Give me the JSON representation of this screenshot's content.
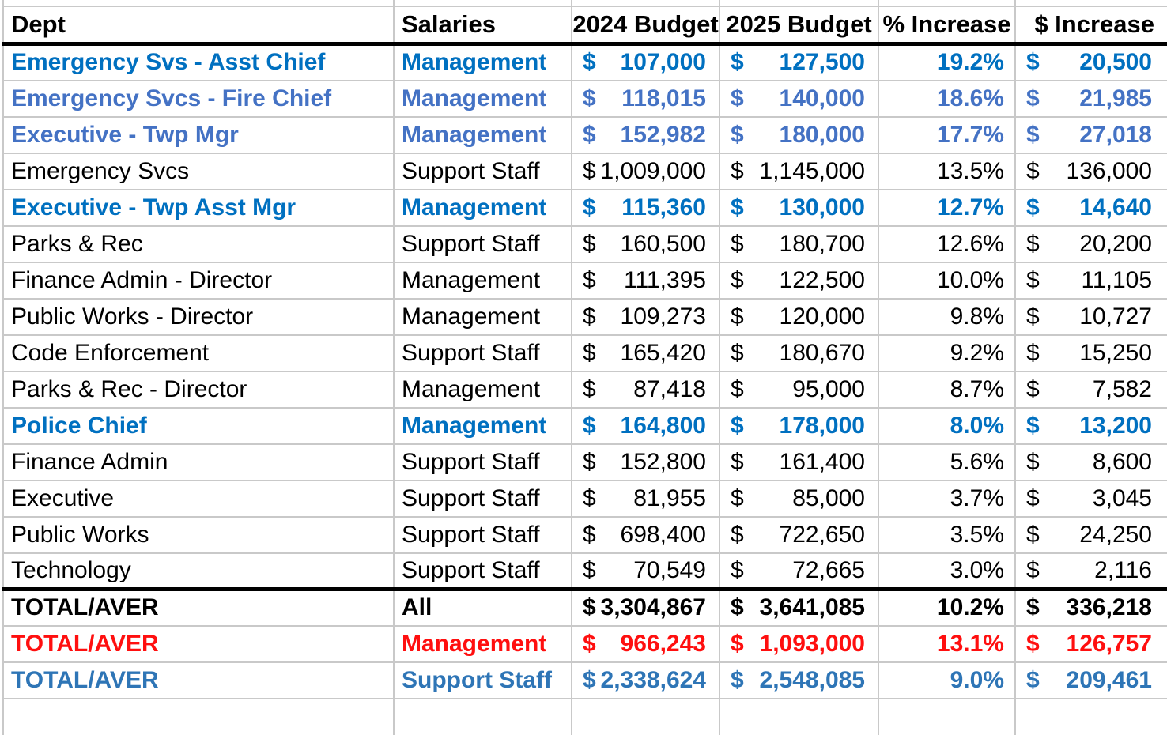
{
  "sheet": {
    "currency_symbol": "$",
    "columns": {
      "dept": "Dept",
      "salaries": "Salaries",
      "budget_2024": "2024 Budget",
      "budget_2025": "2025 Budget",
      "pct_increase": "% Increase",
      "dollar_increase": "$ Increase"
    },
    "rows": [
      {
        "dept": "Emergency Svs - Asst Chief",
        "salaries": "Management",
        "budget_2024": "107,000",
        "budget_2025": "127,500",
        "pct_increase": "19.2%",
        "dollar_increase": "20,500",
        "style": "bright-blue"
      },
      {
        "dept": "Emergency Svcs - Fire Chief",
        "salaries": "Management",
        "budget_2024": "118,015",
        "budget_2025": "140,000",
        "pct_increase": "18.6%",
        "dollar_increase": "21,985",
        "style": "soft-blue"
      },
      {
        "dept": "Executive - Twp Mgr",
        "salaries": "Management",
        "budget_2024": "152,982",
        "budget_2025": "180,000",
        "pct_increase": "17.7%",
        "dollar_increase": "27,018",
        "style": "soft-blue"
      },
      {
        "dept": "Emergency Svcs",
        "salaries": "Support Staff",
        "budget_2024": "1,009,000",
        "budget_2025": "1,145,000",
        "pct_increase": "13.5%",
        "dollar_increase": "136,000",
        "style": "plain"
      },
      {
        "dept": "Executive - Twp Asst Mgr",
        "salaries": "Management",
        "budget_2024": "115,360",
        "budget_2025": "130,000",
        "pct_increase": "12.7%",
        "dollar_increase": "14,640",
        "style": "bright-blue"
      },
      {
        "dept": "Parks & Rec",
        "salaries": "Support Staff",
        "budget_2024": "160,500",
        "budget_2025": "180,700",
        "pct_increase": "12.6%",
        "dollar_increase": "20,200",
        "style": "plain"
      },
      {
        "dept": "Finance Admin - Director",
        "salaries": "Management",
        "budget_2024": "111,395",
        "budget_2025": "122,500",
        "pct_increase": "10.0%",
        "dollar_increase": "11,105",
        "style": "plain"
      },
      {
        "dept": "Public Works - Director",
        "salaries": "Management",
        "budget_2024": "109,273",
        "budget_2025": "120,000",
        "pct_increase": "9.8%",
        "dollar_increase": "10,727",
        "style": "plain"
      },
      {
        "dept": "Code Enforcement",
        "salaries": "Support Staff",
        "budget_2024": "165,420",
        "budget_2025": "180,670",
        "pct_increase": "9.2%",
        "dollar_increase": "15,250",
        "style": "plain"
      },
      {
        "dept": "Parks & Rec - Director",
        "salaries": "Management",
        "budget_2024": "87,418",
        "budget_2025": "95,000",
        "pct_increase": "8.7%",
        "dollar_increase": "7,582",
        "style": "plain"
      },
      {
        "dept": "Police Chief",
        "salaries": "Management",
        "budget_2024": "164,800",
        "budget_2025": "178,000",
        "pct_increase": "8.0%",
        "dollar_increase": "13,200",
        "style": "bright-blue"
      },
      {
        "dept": "Finance Admin",
        "salaries": "Support Staff",
        "budget_2024": "152,800",
        "budget_2025": "161,400",
        "pct_increase": "5.6%",
        "dollar_increase": "8,600",
        "style": "plain"
      },
      {
        "dept": "Executive",
        "salaries": "Support Staff",
        "budget_2024": "81,955",
        "budget_2025": "85,000",
        "pct_increase": "3.7%",
        "dollar_increase": "3,045",
        "style": "plain"
      },
      {
        "dept": "Public Works",
        "salaries": "Support Staff",
        "budget_2024": "698,400",
        "budget_2025": "722,650",
        "pct_increase": "3.5%",
        "dollar_increase": "24,250",
        "style": "plain"
      },
      {
        "dept": "Technology",
        "salaries": "Support Staff",
        "budget_2024": "70,549",
        "budget_2025": "72,665",
        "pct_increase": "3.0%",
        "dollar_increase": "2,116",
        "style": "plain"
      },
      {
        "dept": "TOTAL/AVER",
        "salaries": "All",
        "budget_2024": "3,304,867",
        "budget_2025": "3,641,085",
        "pct_increase": "10.2%",
        "dollar_increase": "336,218",
        "style": "total-black"
      },
      {
        "dept": "TOTAL/AVER",
        "salaries": "Management",
        "budget_2024": "966,243",
        "budget_2025": "1,093,000",
        "pct_increase": "13.1%",
        "dollar_increase": "126,757",
        "style": "total-red"
      },
      {
        "dept": "TOTAL/AVER",
        "salaries": "Support Staff",
        "budget_2024": "2,338,624",
        "budget_2025": "2,548,085",
        "pct_increase": "9.0%",
        "dollar_increase": "209,461",
        "style": "total-blue"
      }
    ],
    "colors": {
      "bright_blue": "#0070C0",
      "soft_blue": "#4472C4",
      "steel_blue_total": "#2E75B6",
      "red_total": "#FF0F0F",
      "text": "#000000",
      "gridline": "#C9C9C9",
      "heavy_rule": "#000000"
    }
  }
}
